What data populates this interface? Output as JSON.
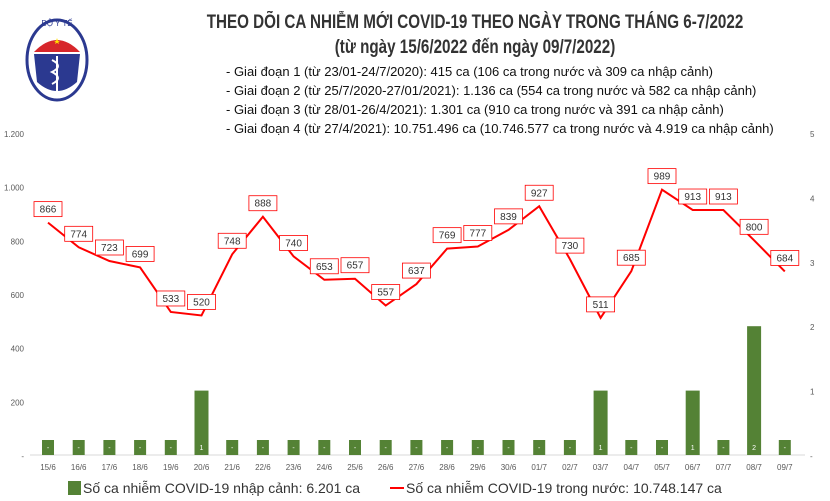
{
  "header": {
    "title": "THEO DÕI CA NHIỄM MỚI COVID-19 THEO NGÀY TRONG THÁNG 6-7/2022",
    "subtitle": "(từ ngày 15/6/2022 đến ngày 09/7/2022)",
    "logo_text": "BỘ Y TẾ - MINISTRY OF HEALTH",
    "notes": [
      "- Giai đoạn 1 (từ 23/01-24/7/2020): 415 ca (106 ca trong nước và 309 ca nhập cảnh)",
      "- Giai đoạn 2 (từ 25/7/2020-27/01/2021): 1.136 ca (554 ca trong nước và 582 ca nhập cảnh)",
      "- Giai đoạn 3 (từ 28/01-26/4/2021): 1.301 ca (910 ca trong nước và 391 ca nhập cảnh)",
      "- Giai đoạn 4 (từ 27/4/2021): 10.751.496 ca (10.746.577 ca trong nước và 4.919 ca nhập cảnh)"
    ]
  },
  "chart_data": {
    "type": "bar+line",
    "categories": [
      "15/6",
      "16/6",
      "17/6",
      "18/6",
      "19/6",
      "20/6",
      "21/6",
      "22/6",
      "23/6",
      "24/6",
      "25/6",
      "26/6",
      "27/6",
      "28/6",
      "29/6",
      "30/6",
      "01/7",
      "02/7",
      "03/7",
      "04/7",
      "05/7",
      "06/7",
      "07/7",
      "08/7",
      "09/7"
    ],
    "series": [
      {
        "name": "Số ca nhiễm COVID-19 nhập cảnh: 6.201 ca",
        "type": "bar",
        "axis": "right",
        "color": "#548235",
        "values": [
          0,
          0,
          0,
          0,
          0,
          1,
          0,
          0,
          0,
          0,
          0,
          0,
          0,
          0,
          0,
          0,
          0,
          0,
          1,
          0,
          0,
          1,
          0,
          2,
          0
        ]
      },
      {
        "name": "Số ca nhiễm COVID-19 trong nước: 10.748.147 ca",
        "type": "line",
        "axis": "left",
        "color": "#ff0000",
        "values": [
          866,
          774,
          723,
          699,
          533,
          520,
          748,
          888,
          740,
          653,
          657,
          557,
          637,
          769,
          777,
          839,
          927,
          730,
          511,
          685,
          989,
          913,
          913,
          800,
          684
        ]
      }
    ],
    "left_axis": {
      "ylim": [
        0,
        1200
      ],
      "ticks": [
        "-",
        "200",
        "400",
        "600",
        "800",
        "1.000",
        "1.200"
      ]
    },
    "right_axis": {
      "ylim": [
        0,
        5
      ],
      "ticks": [
        "-",
        "1",
        "2",
        "3",
        "4",
        "5"
      ]
    },
    "zero_bar_label": "-",
    "grid": false,
    "legend": "bottom"
  }
}
